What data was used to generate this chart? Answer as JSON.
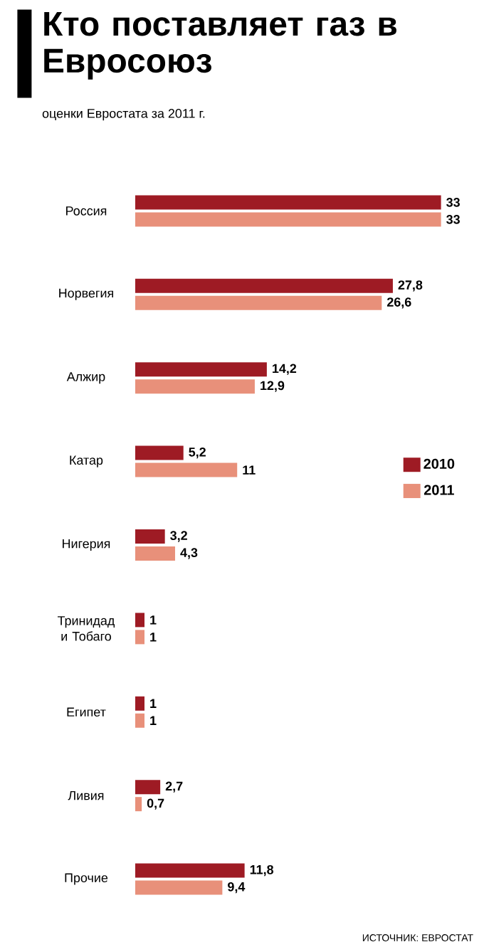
{
  "chart_data": {
    "type": "bar",
    "orientation": "horizontal",
    "title": "Кто поставляет газ в Евросоюз",
    "subtitle": "оценки Евростата за 2011 г.",
    "categories": [
      "Россия",
      "Норвегия",
      "Алжир",
      "Катар",
      "Нигерия",
      "Тринидад и Тобаго",
      "Египет",
      "Ливия",
      "Прочие"
    ],
    "series": [
      {
        "name": "2010",
        "color": "#9e1b24",
        "values": [
          33,
          27.8,
          14.2,
          5.2,
          3.2,
          1,
          1,
          2.7,
          11.8
        ],
        "value_labels": [
          "33",
          "27,8",
          "14,2",
          "5,2",
          "3,2",
          "1",
          "1",
          "2,7",
          "11,8"
        ]
      },
      {
        "name": "2011",
        "color": "#e8907a",
        "values": [
          33,
          26.6,
          12.9,
          11,
          4.3,
          1,
          1,
          0.7,
          9.4
        ],
        "value_labels": [
          "33",
          "26,6",
          "12,9",
          "11",
          "4,3",
          "1",
          "1",
          "0,7",
          "9,4"
        ]
      }
    ],
    "legend": "right",
    "annotations": [
      "ИСТОЧНИК: ЕВРОСТАТ"
    ]
  }
}
